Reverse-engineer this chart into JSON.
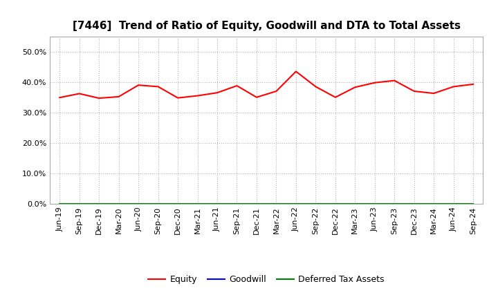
{
  "title": "[7446]  Trend of Ratio of Equity, Goodwill and DTA to Total Assets",
  "x_labels": [
    "Jun-19",
    "Sep-19",
    "Dec-19",
    "Mar-20",
    "Jun-20",
    "Sep-20",
    "Dec-20",
    "Mar-21",
    "Jun-21",
    "Sep-21",
    "Dec-21",
    "Mar-22",
    "Jun-22",
    "Sep-22",
    "Dec-22",
    "Mar-23",
    "Jun-23",
    "Sep-23",
    "Dec-23",
    "Mar-24",
    "Jun-24",
    "Sep-24"
  ],
  "equity": [
    0.349,
    0.362,
    0.347,
    0.352,
    0.39,
    0.385,
    0.348,
    0.355,
    0.365,
    0.388,
    0.35,
    0.37,
    0.435,
    0.385,
    0.35,
    0.383,
    0.398,
    0.405,
    0.37,
    0.363,
    0.385,
    0.393
  ],
  "goodwill": [
    0.0,
    0.0,
    0.0,
    0.0,
    0.0,
    0.0,
    0.0,
    0.0,
    0.0,
    0.0,
    0.0,
    0.0,
    0.0,
    0.0,
    0.0,
    0.0,
    0.0,
    0.0,
    0.0,
    0.0,
    0.0,
    0.0
  ],
  "dta": [
    0.0,
    0.0,
    0.0,
    0.0,
    0.0,
    0.0,
    0.0,
    0.0,
    0.0,
    0.0,
    0.0,
    0.0,
    0.0,
    0.0,
    0.0,
    0.0,
    0.0,
    0.0,
    0.0,
    0.0,
    0.0,
    0.0
  ],
  "equity_color": "#ff0000",
  "goodwill_color": "#0000ff",
  "dta_color": "#008000",
  "ylim": [
    0.0,
    0.55
  ],
  "yticks": [
    0.0,
    0.1,
    0.2,
    0.3,
    0.4,
    0.5
  ],
  "background_color": "#ffffff",
  "plot_bg_color": "#ffffff",
  "grid_color": "#b0b0b0",
  "title_fontsize": 11,
  "tick_fontsize": 8,
  "legend_fontsize": 9
}
